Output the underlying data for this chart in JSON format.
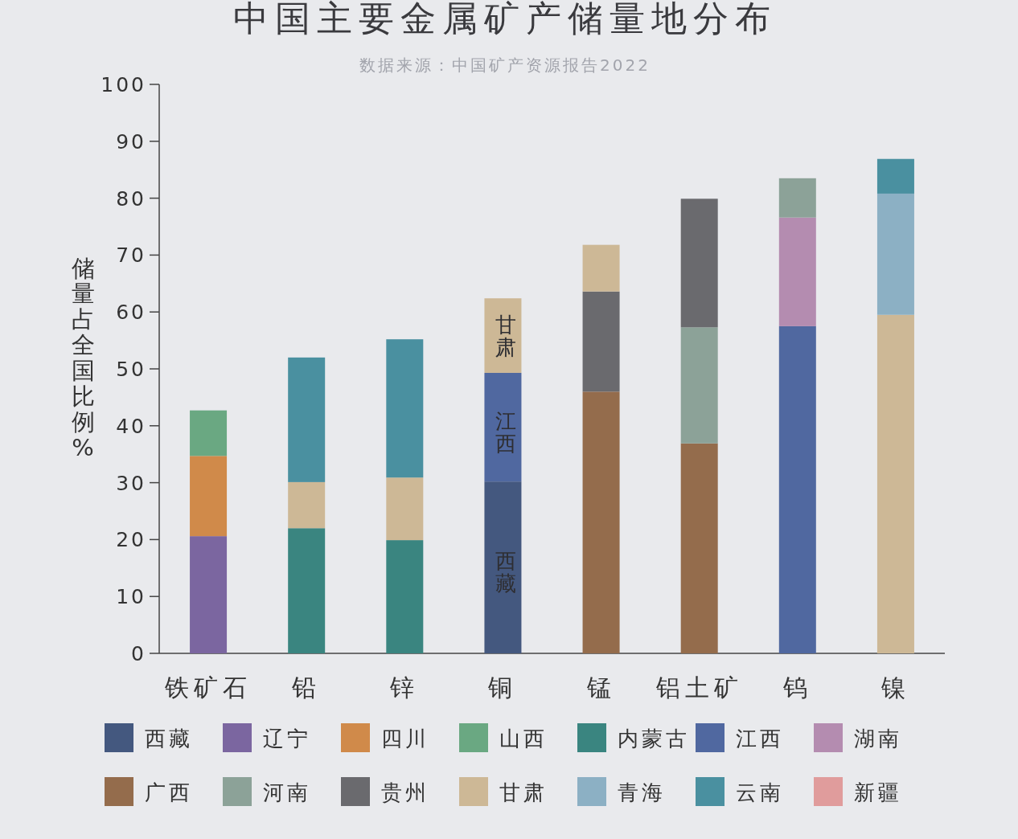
{
  "chart_data": {
    "type": "bar",
    "title": "中国主要金属矿产储量地分布",
    "subtitle": "数据来源：中国矿产资源报告2022",
    "ylabel": "储量占全国比例%",
    "stacked": true,
    "legend": "bottom",
    "ylim": [
      0,
      100
    ],
    "yticks": [
      0,
      10,
      20,
      30,
      40,
      50,
      60,
      70,
      80,
      90,
      100
    ],
    "categories": [
      "铁矿石",
      "铅",
      "锌",
      "铜",
      "锰",
      "铝土矿",
      "钨",
      "镍"
    ],
    "series": [
      {
        "name": "西藏",
        "color": "#44587f",
        "values": [
          null,
          null,
          null,
          30.2,
          null,
          null,
          null,
          null
        ]
      },
      {
        "name": "辽宁",
        "color": "#7b66a0",
        "values": [
          20.6,
          null,
          null,
          null,
          null,
          null,
          null,
          null
        ]
      },
      {
        "name": "四川",
        "color": "#d08a4a",
        "values": [
          14.1,
          null,
          null,
          null,
          null,
          null,
          null,
          null
        ]
      },
      {
        "name": "山西",
        "color": "#6aa882",
        "values": [
          8.0,
          null,
          null,
          null,
          null,
          null,
          null,
          null
        ]
      },
      {
        "name": "内蒙古",
        "color": "#3a8580",
        "values": [
          null,
          22.0,
          19.9,
          null,
          null,
          null,
          null,
          null
        ]
      },
      {
        "name": "江西",
        "color": "#5068a0",
        "values": [
          null,
          null,
          null,
          19.1,
          null,
          null,
          57.5,
          null
        ]
      },
      {
        "name": "湖南",
        "color": "#b48cb0",
        "values": [
          null,
          null,
          null,
          null,
          null,
          null,
          19.1,
          null
        ]
      },
      {
        "name": "广西",
        "color": "#946c4c",
        "values": [
          null,
          null,
          null,
          null,
          46.0,
          36.9,
          null,
          null
        ]
      },
      {
        "name": "河南",
        "color": "#8ca298",
        "values": [
          null,
          null,
          null,
          null,
          null,
          20.4,
          6.9,
          null
        ]
      },
      {
        "name": "贵州",
        "color": "#6a6a6e",
        "values": [
          null,
          null,
          null,
          null,
          17.6,
          22.6,
          null,
          null
        ]
      },
      {
        "name": "甘肃",
        "color": "#cdb896",
        "values": [
          null,
          8.1,
          11.0,
          13.1,
          8.2,
          null,
          null,
          59.5
        ]
      },
      {
        "name": "青海",
        "color": "#8cb0c4",
        "values": [
          null,
          null,
          null,
          null,
          null,
          null,
          null,
          21.3
        ]
      },
      {
        "name": "云南",
        "color": "#4a90a0",
        "values": [
          null,
          21.9,
          24.3,
          null,
          null,
          null,
          null,
          6.1
        ]
      },
      {
        "name": "新疆",
        "color": "#e09c9c",
        "values": [
          null,
          null,
          null,
          null,
          null,
          null,
          null,
          null
        ]
      }
    ],
    "annotations": [
      "西藏",
      "江西",
      "甘肃"
    ]
  }
}
